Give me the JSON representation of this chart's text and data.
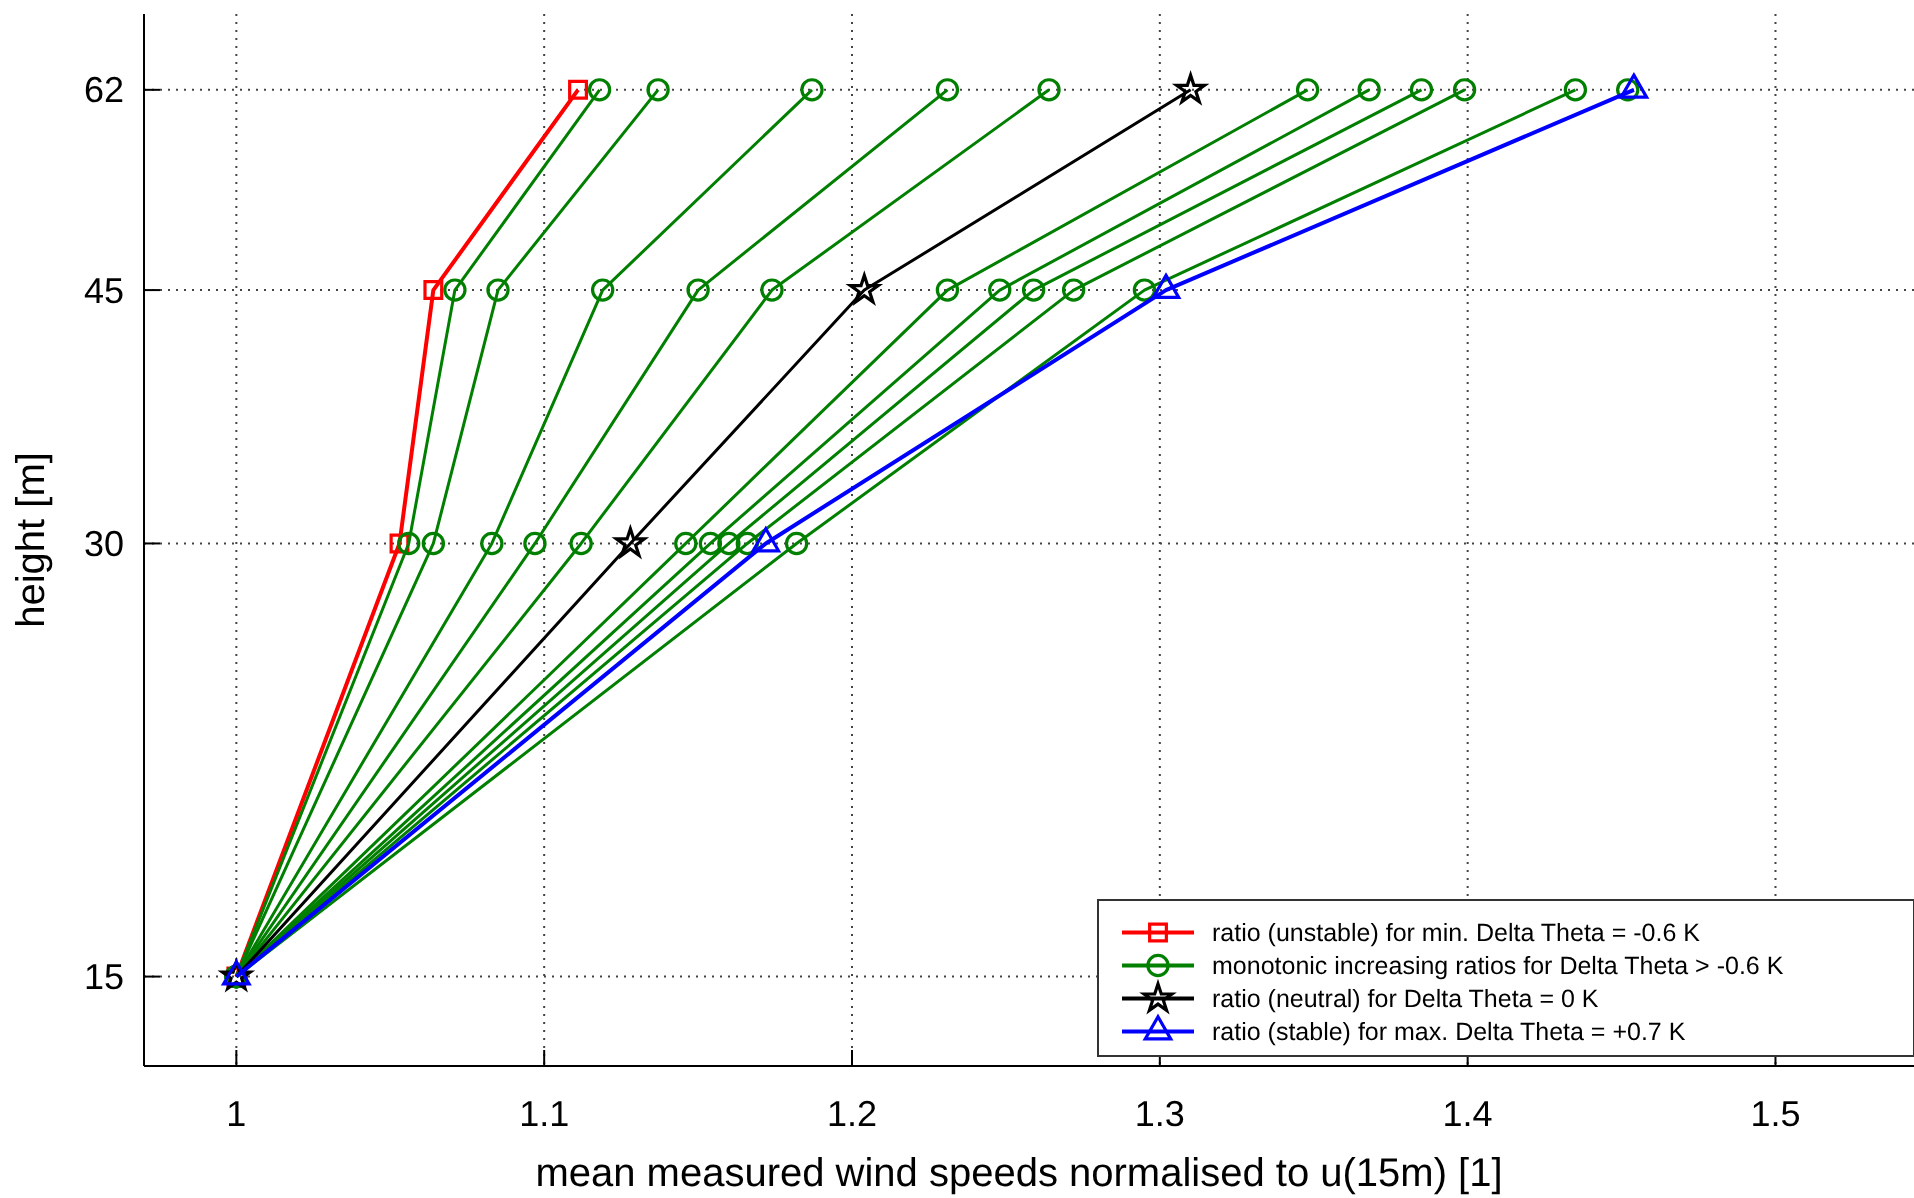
{
  "chart_data": {
    "type": "line",
    "xlabel": "mean measured wind speeds normalised to u(15m) [1]",
    "ylabel": "height [m]",
    "xlim": [
      0.97,
      1.545
    ],
    "ylim": [
      13,
      70
    ],
    "xticks": [
      1,
      1.1,
      1.2,
      1.3,
      1.4,
      1.5
    ],
    "yticks": [
      15,
      30,
      45,
      62
    ],
    "log": "y",
    "grid": true,
    "legend": "bottom right",
    "series": [
      {
        "name": "ratio (unstable) for min. Delta Theta = -0.6 K",
        "color": "#ff0000",
        "marker": "square",
        "x": [
          1,
          1.053,
          1.064,
          1.111
        ],
        "values": [
          15,
          30,
          45,
          62
        ]
      },
      {
        "name": "monotonic increasing ratios for Delta Theta > -0.6 K",
        "color": "#007f00",
        "marker": "circle",
        "x": [
          1,
          1.056,
          1.071,
          1.118
        ],
        "values": [
          15,
          30,
          45,
          62
        ]
      },
      {
        "color": "#007f00",
        "marker": "circle",
        "x": [
          1,
          1.064,
          1.085,
          1.137
        ],
        "values": [
          15,
          30,
          45,
          62
        ]
      },
      {
        "color": "#007f00",
        "marker": "circle",
        "x": [
          1,
          1.083,
          1.119,
          1.187
        ],
        "values": [
          15,
          30,
          45,
          62
        ]
      },
      {
        "color": "#007f00",
        "marker": "circle",
        "x": [
          1,
          1.097,
          1.15,
          1.231
        ],
        "values": [
          15,
          30,
          45,
          62
        ]
      },
      {
        "color": "#007f00",
        "marker": "circle",
        "x": [
          1,
          1.112,
          1.174,
          1.264
        ],
        "values": [
          15,
          30,
          45,
          62
        ]
      },
      {
        "color": "#007f00",
        "marker": "circle",
        "x": [
          1,
          1.146,
          1.231,
          1.348
        ],
        "values": [
          15,
          30,
          45,
          62
        ]
      },
      {
        "color": "#007f00",
        "marker": "circle",
        "x": [
          1,
          1.154,
          1.248,
          1.368
        ],
        "values": [
          15,
          30,
          45,
          62
        ]
      },
      {
        "color": "#007f00",
        "marker": "circle",
        "x": [
          1,
          1.16,
          1.259,
          1.385
        ],
        "values": [
          15,
          30,
          45,
          62
        ]
      },
      {
        "color": "#007f00",
        "marker": "circle",
        "x": [
          1,
          1.166,
          1.272,
          1.399
        ],
        "values": [
          15,
          30,
          45,
          62
        ]
      },
      {
        "color": "#007f00",
        "marker": "circle",
        "x": [
          1,
          1.182,
          1.295,
          1.435
        ],
        "values": [
          15,
          30,
          45,
          62
        ]
      },
      {
        "color": "#007f00",
        "marker": "circle",
        "x": [
          null,
          null,
          null,
          1.452
        ],
        "values": [
          null,
          null,
          null,
          62
        ]
      },
      {
        "name": "ratio (neutral) for Delta Theta = 0 K",
        "color": "#000000",
        "marker": "star",
        "x": [
          1,
          1.128,
          1.204,
          1.31
        ],
        "values": [
          15,
          30,
          45,
          62
        ]
      },
      {
        "name": "ratio (stable) for max. Delta Theta = +0.7 K",
        "color": "#0000ff",
        "marker": "triangle",
        "x": [
          1,
          1.172,
          1.302,
          1.454
        ],
        "values": [
          15,
          30,
          45,
          62
        ]
      }
    ]
  }
}
